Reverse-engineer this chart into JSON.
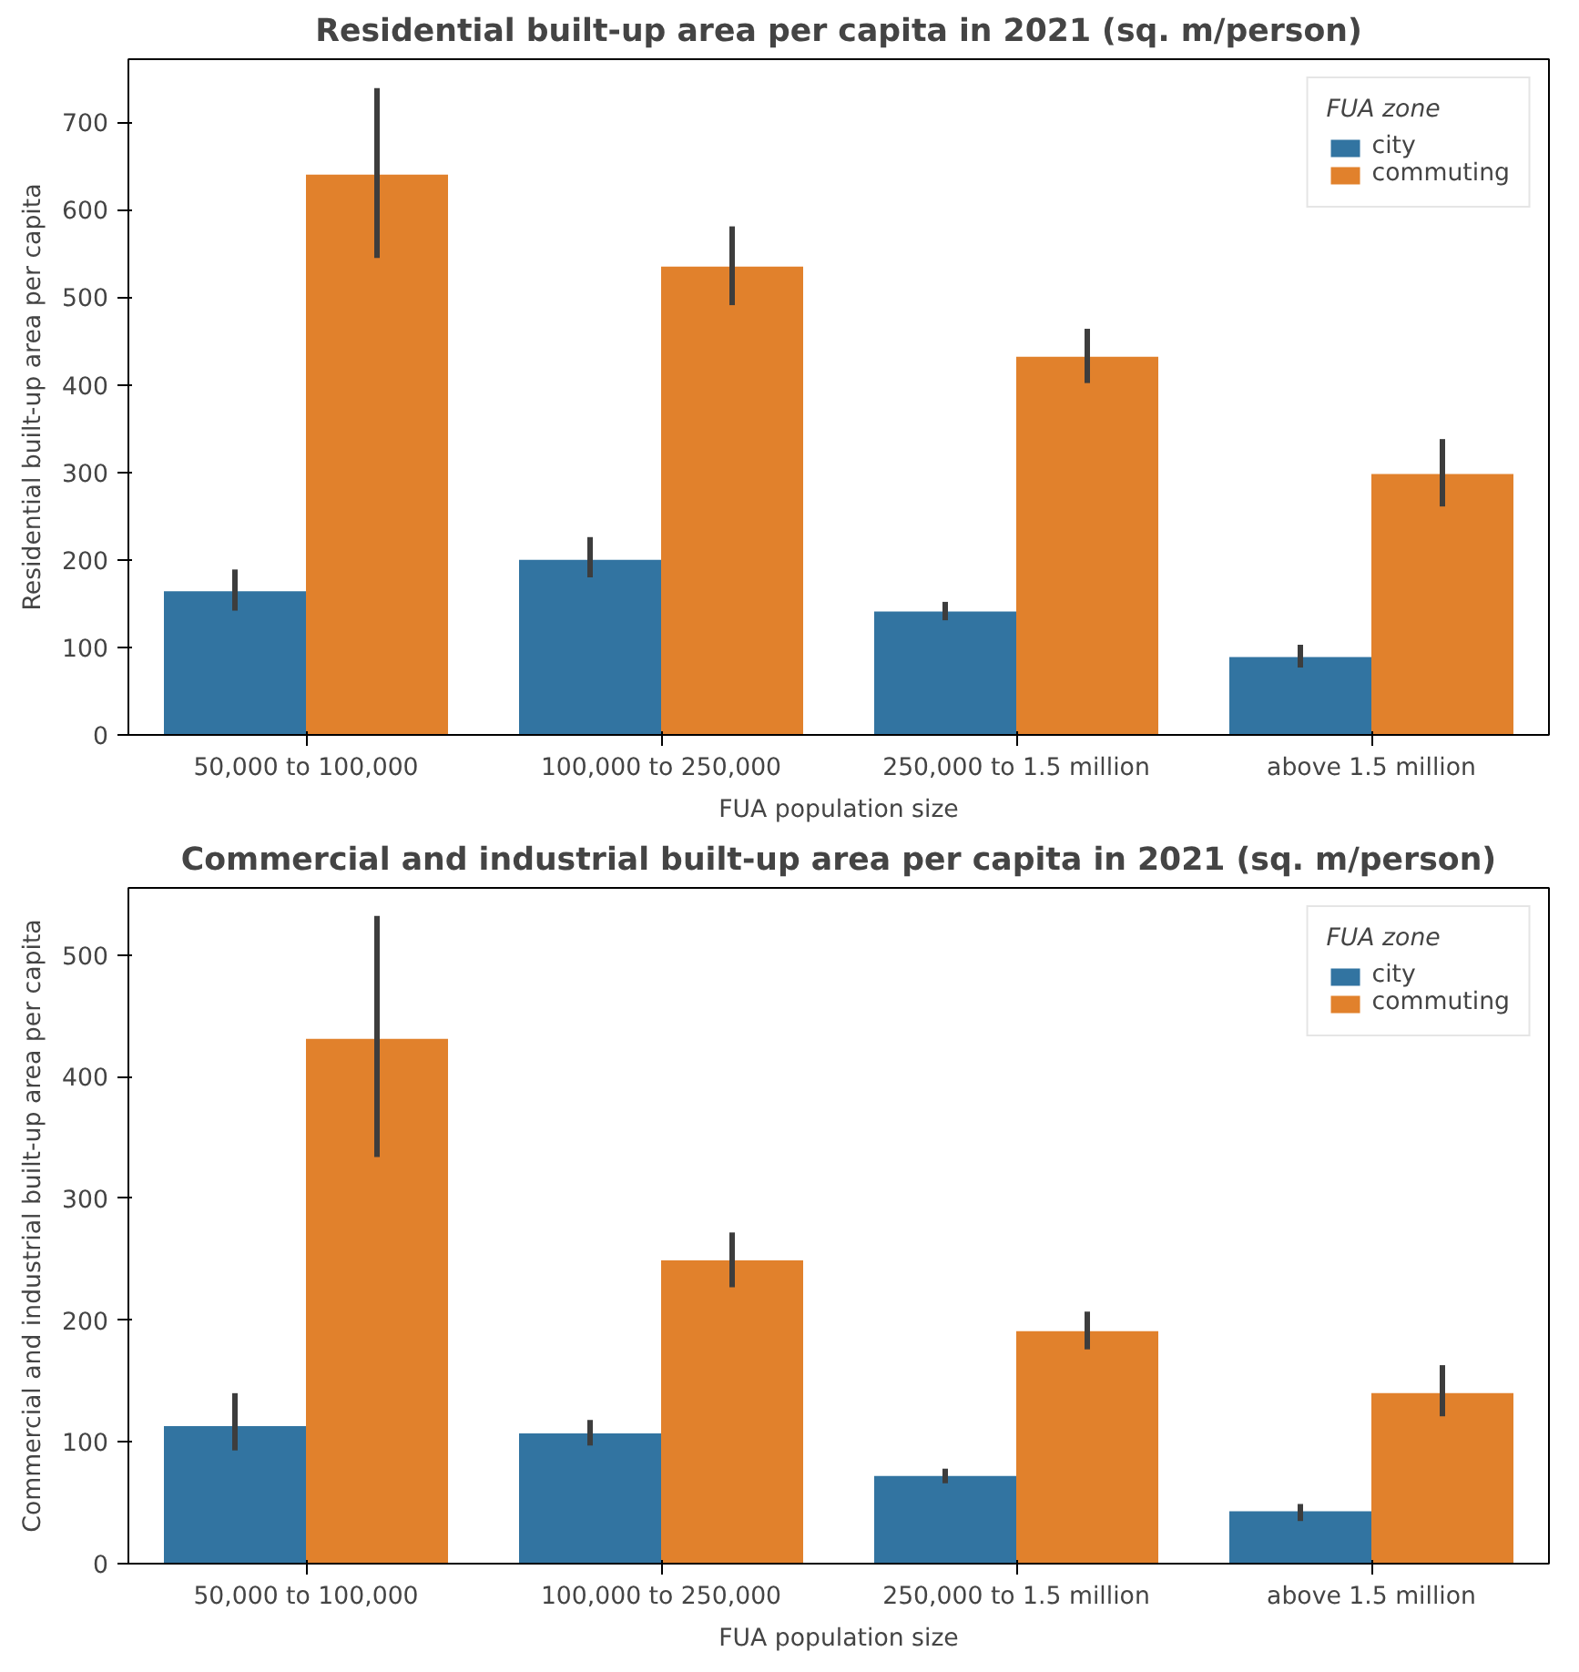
{
  "chart_data": [
    {
      "type": "bar",
      "title": "Residential built-up area per capita in 2021 (sq. m/person)",
      "xlabel": "FUA population size",
      "ylabel": "Residential built-up area per capita",
      "legend_title": "FUA zone",
      "legend": "top right",
      "grid": false,
      "categories": [
        "50,000 to 100,000",
        "100,000 to 250,000",
        "250,000 to 1.5 million",
        "above 1.5 million"
      ],
      "ylim": [
        0,
        772
      ],
      "yticks": [
        0,
        100,
        200,
        300,
        400,
        500,
        600,
        700
      ],
      "series": [
        {
          "name": "city",
          "color": "#3274a1",
          "values": [
            164,
            200,
            141,
            89
          ],
          "errors": [
            [
              142,
              189
            ],
            [
              180,
              226
            ],
            [
              131,
              152
            ],
            [
              77,
              103
            ]
          ]
        },
        {
          "name": "commuting",
          "color": "#e1812c",
          "values": [
            640,
            535,
            432,
            298
          ],
          "errors": [
            [
              545,
              739
            ],
            [
              491,
              581
            ],
            [
              402,
              464
            ],
            [
              261,
              338
            ]
          ]
        }
      ]
    },
    {
      "type": "bar",
      "title": "Commercial and industrial built-up area per capita in 2021 (sq. m/person)",
      "xlabel": "FUA population size",
      "ylabel": "Commercial and industrial built-up area per capita",
      "legend_title": "FUA zone",
      "legend": "top right",
      "grid": false,
      "categories": [
        "50,000 to 100,000",
        "100,000 to 250,000",
        "250,000 to 1.5 million",
        "above 1.5 million"
      ],
      "ylim": [
        0,
        555
      ],
      "yticks": [
        0,
        100,
        200,
        300,
        400,
        500
      ],
      "series": [
        {
          "name": "city",
          "color": "#3274a1",
          "values": [
            113,
            107,
            72,
            43
          ],
          "errors": [
            [
              93,
              140
            ],
            [
              97,
              118
            ],
            [
              66,
              78
            ],
            [
              35,
              49
            ]
          ]
        },
        {
          "name": "commuting",
          "color": "#e1812c",
          "values": [
            431,
            249,
            191,
            140
          ],
          "errors": [
            [
              334,
              532
            ],
            [
              227,
              272
            ],
            [
              176,
              207
            ],
            [
              121,
              163
            ]
          ]
        }
      ]
    }
  ]
}
